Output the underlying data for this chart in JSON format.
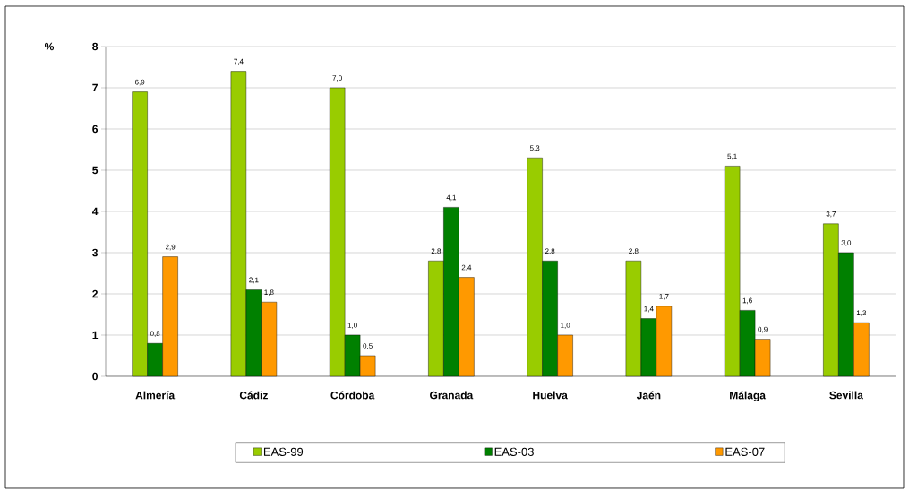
{
  "chart_data": {
    "type": "bar",
    "ylabel": "%",
    "categories": [
      "Almería",
      "Cádiz",
      "Córdoba",
      "Granada",
      "Huelva",
      "Jaén",
      "Málaga",
      "Sevilla"
    ],
    "series": [
      {
        "name": "EAS-99",
        "color": "#99cc00",
        "values": [
          6.9,
          7.4,
          7.0,
          2.8,
          5.3,
          2.8,
          5.1,
          3.7
        ],
        "value_labels": [
          "6,9",
          "7,4",
          "7,0",
          "2,8",
          "5,3",
          "2,8",
          "5,1",
          "3,7"
        ]
      },
      {
        "name": "EAS-03",
        "color": "#008000",
        "values": [
          0.8,
          2.1,
          1.0,
          4.1,
          2.8,
          1.4,
          1.6,
          3.0
        ],
        "value_labels": [
          "0,8",
          "2,1",
          "1,0",
          "4,1",
          "2,8",
          "1,4",
          "1,6",
          "3,0"
        ]
      },
      {
        "name": "EAS-07",
        "color": "#ff9900",
        "values": [
          2.9,
          1.8,
          0.5,
          2.4,
          1.0,
          1.7,
          0.9,
          1.3
        ],
        "value_labels": [
          "2,9",
          "1,8",
          "0,5",
          "2,4",
          "1,0",
          "1,7",
          "0,9",
          "1,3"
        ]
      }
    ],
    "ylim": [
      0,
      8
    ],
    "yticks": [
      0,
      1,
      2,
      3,
      4,
      5,
      6,
      7,
      8
    ],
    "grid": "y",
    "legend": "bottom"
  }
}
